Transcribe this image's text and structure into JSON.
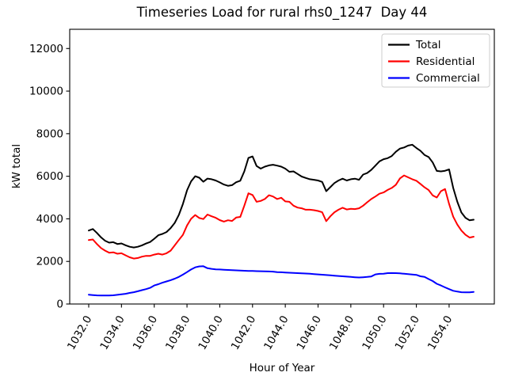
{
  "chart_data": {
    "type": "line",
    "title": "Timeseries Load for rural rhs0_1247  Day 44",
    "xlabel": "Hour of Year",
    "ylabel": "kW total",
    "xlim": [
      1030.84,
      1056.76
    ],
    "ylim": [
      0,
      12903
    ],
    "grid": false,
    "legend_position": "upper right",
    "legend_border_color": "#cccccc",
    "axis_color": "#000000",
    "xticks": [
      1032,
      1034,
      1036,
      1038,
      1040,
      1042,
      1044,
      1046,
      1048,
      1050,
      1052,
      1054
    ],
    "xtick_labels": [
      "1032.0",
      "1034.0",
      "1036.0",
      "1038.0",
      "1040.0",
      "1042.0",
      "1044.0",
      "1046.0",
      "1048.0",
      "1050.0",
      "1052.0",
      "1054.0"
    ],
    "yticks": [
      0,
      2000,
      4000,
      6000,
      8000,
      10000,
      12000
    ],
    "ytick_labels": [
      "0",
      "2000",
      "4000",
      "6000",
      "8000",
      "10000",
      "12000"
    ],
    "x": [
      1032.0,
      1032.25,
      1032.5,
      1032.75,
      1033.0,
      1033.25,
      1033.5,
      1033.75,
      1034.0,
      1034.25,
      1034.5,
      1034.75,
      1035.0,
      1035.25,
      1035.5,
      1035.75,
      1036.0,
      1036.25,
      1036.5,
      1036.75,
      1037.0,
      1037.25,
      1037.5,
      1037.75,
      1038.0,
      1038.25,
      1038.5,
      1038.75,
      1039.0,
      1039.25,
      1039.5,
      1039.75,
      1040.0,
      1040.25,
      1040.5,
      1040.75,
      1041.0,
      1041.25,
      1041.5,
      1041.75,
      1042.0,
      1042.25,
      1042.5,
      1042.75,
      1043.0,
      1043.25,
      1043.5,
      1043.75,
      1044.0,
      1044.25,
      1044.5,
      1044.75,
      1045.0,
      1045.25,
      1045.5,
      1045.75,
      1046.0,
      1046.25,
      1046.5,
      1046.75,
      1047.0,
      1047.25,
      1047.5,
      1047.75,
      1048.0,
      1048.25,
      1048.5,
      1048.75,
      1049.0,
      1049.25,
      1049.5,
      1049.75,
      1050.0,
      1050.25,
      1050.5,
      1050.75,
      1051.0,
      1051.25,
      1051.5,
      1051.75,
      1052.0,
      1052.25,
      1052.5,
      1052.75,
      1053.0,
      1053.25,
      1053.5,
      1053.75,
      1054.0,
      1054.25,
      1054.5,
      1054.75,
      1055.0,
      1055.25,
      1055.5
    ],
    "series": [
      {
        "name": "Total",
        "color": "#000000",
        "values": [
          3450,
          3520,
          3340,
          3130,
          2970,
          2880,
          2905,
          2820,
          2845,
          2760,
          2690,
          2655,
          2690,
          2755,
          2840,
          2910,
          3065,
          3230,
          3290,
          3380,
          3565,
          3810,
          4180,
          4700,
          5340,
          5760,
          6000,
          5930,
          5740,
          5890,
          5860,
          5800,
          5710,
          5610,
          5550,
          5580,
          5720,
          5790,
          6230,
          6860,
          6930,
          6480,
          6360,
          6450,
          6510,
          6540,
          6500,
          6450,
          6360,
          6210,
          6230,
          6110,
          5985,
          5920,
          5860,
          5835,
          5800,
          5735,
          5300,
          5490,
          5680,
          5800,
          5885,
          5800,
          5860,
          5885,
          5835,
          6080,
          6150,
          6300,
          6500,
          6700,
          6800,
          6850,
          6950,
          7150,
          7300,
          7350,
          7440,
          7480,
          7330,
          7200,
          7000,
          6900,
          6650,
          6250,
          6230,
          6260,
          6320,
          5450,
          4800,
          4300,
          4050,
          3930,
          3960
        ]
      },
      {
        "name": "Residential",
        "color": "#ff0000",
        "values": [
          3005,
          3030,
          2820,
          2630,
          2505,
          2410,
          2430,
          2360,
          2385,
          2285,
          2195,
          2135,
          2160,
          2225,
          2260,
          2260,
          2320,
          2360,
          2320,
          2385,
          2505,
          2755,
          3005,
          3250,
          3690,
          4000,
          4180,
          4040,
          3990,
          4200,
          4120,
          4050,
          3940,
          3870,
          3935,
          3900,
          4060,
          4090,
          4620,
          5200,
          5120,
          4800,
          4840,
          4930,
          5110,
          5050,
          4930,
          4990,
          4820,
          4800,
          4620,
          4530,
          4495,
          4430,
          4430,
          4405,
          4370,
          4310,
          3890,
          4120,
          4310,
          4430,
          4520,
          4440,
          4470,
          4460,
          4495,
          4620,
          4780,
          4930,
          5050,
          5180,
          5240,
          5360,
          5450,
          5600,
          5900,
          6040,
          5950,
          5860,
          5790,
          5640,
          5480,
          5350,
          5100,
          5000,
          5300,
          5400,
          4700,
          4100,
          3730,
          3450,
          3250,
          3120,
          3160
        ]
      },
      {
        "name": "Commercial",
        "color": "#0000ff",
        "values": [
          440,
          420,
          405,
          400,
          400,
          400,
          410,
          430,
          455,
          480,
          520,
          555,
          600,
          650,
          700,
          760,
          870,
          930,
          1000,
          1060,
          1120,
          1190,
          1270,
          1380,
          1500,
          1620,
          1720,
          1765,
          1775,
          1680,
          1650,
          1630,
          1620,
          1610,
          1600,
          1590,
          1580,
          1570,
          1560,
          1555,
          1550,
          1545,
          1540,
          1535,
          1530,
          1520,
          1500,
          1490,
          1480,
          1470,
          1460,
          1450,
          1440,
          1430,
          1420,
          1405,
          1390,
          1375,
          1360,
          1345,
          1330,
          1315,
          1300,
          1285,
          1270,
          1255,
          1245,
          1255,
          1270,
          1295,
          1390,
          1415,
          1425,
          1450,
          1455,
          1450,
          1440,
          1420,
          1400,
          1385,
          1370,
          1300,
          1270,
          1170,
          1080,
          950,
          870,
          780,
          700,
          620,
          585,
          555,
          545,
          545,
          570
        ]
      }
    ]
  }
}
